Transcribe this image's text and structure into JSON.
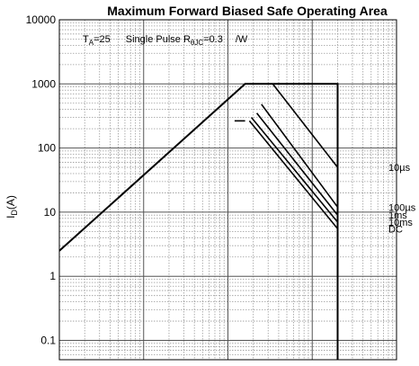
{
  "chart_data": {
    "type": "line",
    "title": "Maximum Forward Biased Safe Operating Area",
    "ylabel": "I",
    "ylabel_sub": "D",
    "ylabel_unit": "(A)",
    "y_scale": "log",
    "ylim": [
      0.05,
      10000
    ],
    "y_ticks": [
      "10000",
      "1000",
      "100",
      "10",
      "1",
      "0.1"
    ],
    "x_scale": "log",
    "xlim": [
      0.1,
      1000
    ],
    "x_ticks_shown": false,
    "grid": true,
    "annotation": {
      "ta_prefix": "T",
      "ta_sub": "A",
      "ta_suffix": "=25",
      "pulse_prefix": "Single Pulse R",
      "pulse_sub": "θJC",
      "pulse_suffix": "=0.3",
      "unit": "/W"
    },
    "limit_line": {
      "name": "",
      "points": [
        [
          0.1,
          2.5
        ],
        [
          16,
          1000
        ],
        [
          40,
          1000
        ],
        [
          200,
          1000
        ],
        [
          200,
          0.05
        ]
      ]
    },
    "series": [
      {
        "name": "10µs",
        "points": [
          [
            34,
            1000
          ],
          [
            200,
            50
          ]
        ]
      },
      {
        "name": "100µs",
        "points": [
          [
            25,
            480
          ],
          [
            200,
            12
          ]
        ]
      },
      {
        "name": "1ms",
        "points": [
          [
            22,
            350
          ],
          [
            200,
            9
          ]
        ]
      },
      {
        "name": "10ms",
        "points": [
          [
            19,
            300
          ],
          [
            200,
            7
          ]
        ]
      },
      {
        "name": "DC",
        "points": [
          [
            18,
            265
          ],
          [
            200,
            5.5
          ]
        ]
      }
    ],
    "dc_knee": [
      [
        12,
        265
      ],
      [
        16,
        265
      ]
    ]
  }
}
